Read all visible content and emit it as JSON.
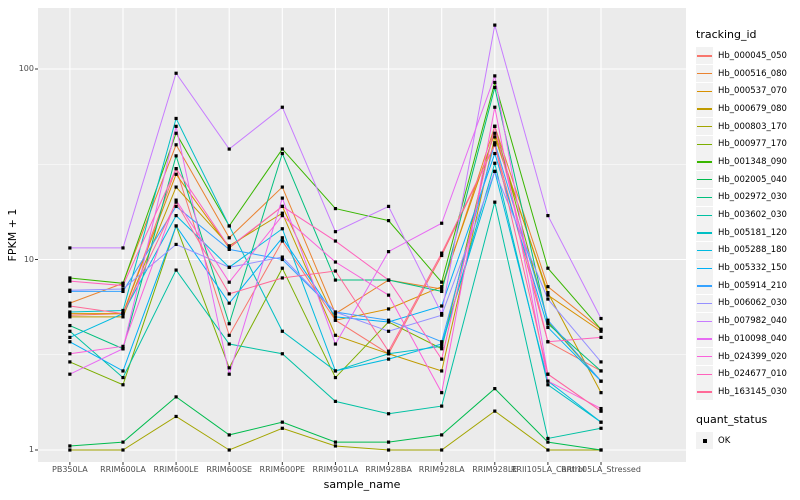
{
  "chart_data": {
    "type": "line",
    "title": "",
    "xlabel": "sample_name",
    "ylabel": "FPKM + 1",
    "yscale": "log10",
    "ylim": [
      0.87,
      208
    ],
    "grid": true,
    "legend_position": "right",
    "panel_bg": "#EBEBEB",
    "grid_color": "#FFFFFF",
    "tick_label_color": "#4D4D4D",
    "marker": {
      "shape": "square",
      "color": "#000000",
      "size": 3.2
    },
    "y_ticks": [
      {
        "value": 1,
        "label": "1"
      },
      {
        "value": 10,
        "label": "10"
      },
      {
        "value": 100,
        "label": "100"
      }
    ],
    "y_minor_ticks": [
      3.1623,
      31.623
    ],
    "categories": [
      "PB350LA",
      "RRIM600LA",
      "RRIM600LE",
      "RRIM600SE",
      "RRIM600PE",
      "RRIM901LA",
      "RRIM928BA",
      "RRIM928LA",
      "RRIM928LE",
      "RRII105LA_Control",
      "RRII105LA_Stressed"
    ],
    "legend_title": "tracking_id",
    "point_legend": {
      "title": "quant_status",
      "items": [
        {
          "label": "OK",
          "marker": "black-square"
        }
      ]
    },
    "series": [
      {
        "name": "Hb_000045_050",
        "color": "#F8766D",
        "values": [
          5.1,
          5.2,
          30,
          4.0,
          12.5,
          4.8,
          3.2,
          10.5,
          40,
          3.7,
          2.6
        ]
      },
      {
        "name": "Hb_000516_080",
        "color": "#EA8331",
        "values": [
          5.9,
          7.5,
          40,
          13,
          24,
          5.2,
          7.8,
          7.0,
          50,
          7.2,
          4.3
        ]
      },
      {
        "name": "Hb_000537_070",
        "color": "#D89000",
        "values": [
          5.2,
          5.2,
          28,
          11.5,
          19,
          4.8,
          5.5,
          7.2,
          46,
          6.5,
          4.2
        ]
      },
      {
        "name": "Hb_000679_080",
        "color": "#C09B00",
        "values": [
          5.0,
          5.0,
          24,
          11.8,
          17.5,
          4.0,
          3.2,
          2.6,
          44,
          6.7,
          2.0
        ]
      },
      {
        "name": "Hb_000803_170",
        "color": "#A3A500",
        "values": [
          1.0,
          1.0,
          1.5,
          1.0,
          1.3,
          1.05,
          1.0,
          1.0,
          1.6,
          1.0,
          1.0
        ]
      },
      {
        "name": "Hb_000977_170",
        "color": "#7CAE00",
        "values": [
          2.9,
          2.2,
          15,
          2.7,
          9.0,
          2.4,
          4.7,
          3.4,
          50,
          4.7,
          2.3
        ]
      },
      {
        "name": "Hb_001348_090",
        "color": "#39B600",
        "values": [
          8.0,
          7.5,
          46,
          15,
          38,
          18.5,
          16,
          7.6,
          85,
          9.0,
          4.3
        ]
      },
      {
        "name": "Hb_002005_040",
        "color": "#00BB4E",
        "values": [
          1.05,
          1.1,
          1.9,
          1.2,
          1.4,
          1.1,
          1.1,
          1.2,
          2.1,
          1.1,
          1.0
        ]
      },
      {
        "name": "Hb_002972_030",
        "color": "#00BF7D",
        "values": [
          4.5,
          3.4,
          35,
          4.6,
          36,
          7.8,
          7.8,
          6.8,
          80,
          4.6,
          2.6
        ]
      },
      {
        "name": "Hb_003602_030",
        "color": "#00C1A3",
        "values": [
          4.2,
          2.4,
          8.8,
          3.6,
          3.2,
          1.8,
          1.55,
          1.7,
          20,
          1.15,
          1.3
        ]
      },
      {
        "name": "Hb_005181_120",
        "color": "#00BFC4",
        "values": [
          5.3,
          5.4,
          55,
          15,
          4.2,
          2.6,
          3.2,
          3.5,
          32,
          2.2,
          1.4
        ]
      },
      {
        "name": "Hb_005288_180",
        "color": "#00BAE0",
        "values": [
          3.9,
          5.2,
          17,
          9.1,
          14.5,
          2.6,
          3.0,
          3.6,
          29,
          2.3,
          1.4
        ]
      },
      {
        "name": "Hb_005332_150",
        "color": "#00B0F6",
        "values": [
          3.7,
          2.6,
          15,
          5.9,
          13,
          5.0,
          4.7,
          5.7,
          36,
          4.4,
          2.3
        ]
      },
      {
        "name": "Hb_005914_210",
        "color": "#35A2FF",
        "values": [
          6.8,
          6.8,
          19,
          11.3,
          10,
          5.3,
          4.8,
          3.7,
          41,
          4.8,
          2.3
        ]
      },
      {
        "name": "Hb_006062_030",
        "color": "#9590FF",
        "values": [
          6.9,
          7.0,
          12,
          9.1,
          10.3,
          5.3,
          4.2,
          5.1,
          29,
          6.2,
          2.9
        ]
      },
      {
        "name": "Hb_007982_040",
        "color": "#C77CFF",
        "values": [
          11.5,
          11.5,
          95,
          38,
          63,
          14,
          19,
          5.2,
          170,
          17,
          4.9
        ]
      },
      {
        "name": "Hb_010098_040",
        "color": "#E76BF3",
        "values": [
          2.5,
          3.4,
          50,
          2.5,
          21,
          3.6,
          11,
          15.5,
          92,
          2.5,
          1.6
        ]
      },
      {
        "name": "Hb_024399_020",
        "color": "#FA62DB",
        "values": [
          3.2,
          3.5,
          20.5,
          7.6,
          17,
          9.7,
          6.5,
          2.0,
          63,
          2.3,
          1.65
        ]
      },
      {
        "name": "Hb_024677_010",
        "color": "#FF62BC",
        "values": [
          7.7,
          7.3,
          30,
          11.6,
          19,
          12.5,
          7.8,
          3.0,
          50,
          3.7,
          3.9
        ]
      },
      {
        "name": "Hb_163145_030",
        "color": "#FF6A98",
        "values": [
          5.7,
          5.2,
          20,
          6.6,
          8.0,
          8.7,
          3.3,
          10.8,
          40,
          2.5,
          1.6
        ]
      }
    ]
  }
}
